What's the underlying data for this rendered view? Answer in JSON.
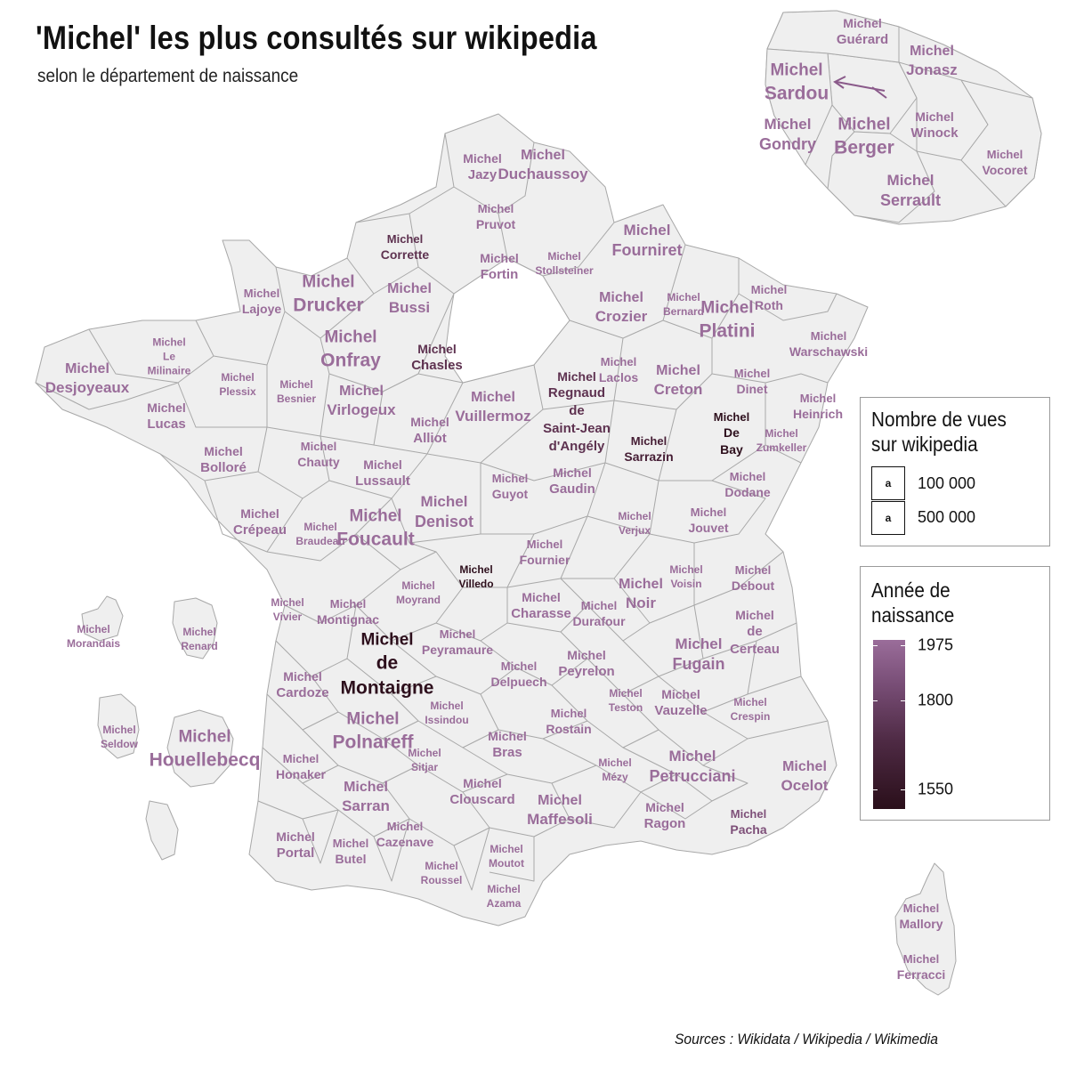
{
  "title": "'Michel' les plus consultés sur wikipedia",
  "subtitle": "selon le département de naissance",
  "sources": "Sources : Wikidata / Wikipedia / Wikimedia",
  "legend_views": {
    "title": "Nombre de vues\nsur wikipedia",
    "key_glyph": "a",
    "items": [
      {
        "value": 100000,
        "label": "100 000"
      },
      {
        "value": 500000,
        "label": "500 000"
      }
    ]
  },
  "legend_year": {
    "title": "Année de\nnaissance",
    "ticks": [
      {
        "year": 1975,
        "label": "1975"
      },
      {
        "year": 1800,
        "label": "1800"
      },
      {
        "year": 1550,
        "label": "1550"
      }
    ],
    "colors": {
      "1975": "#9a6d9a",
      "1800": "#6b3e66",
      "1550": "#2a0f1a"
    }
  },
  "colors": {
    "region_fill": "#efefef",
    "region_stroke": "#a8a8a8",
    "inset_arrow": "#8a5a8a"
  },
  "michels": [
    {
      "name": "Michel\nGuérard",
      "year": 1933,
      "views": 50000
    },
    {
      "name": "Michel\nJonasz",
      "year": 1947,
      "views": 90000
    },
    {
      "name": "Michel\nSardou",
      "year": 1947,
      "views": 420000
    },
    {
      "name": "Michel\nGondry",
      "year": 1963,
      "views": 150000
    },
    {
      "name": "Michel\nBerger",
      "year": 1947,
      "views": 420000
    },
    {
      "name": "Michel\nWinock",
      "year": 1937,
      "views": 45000
    },
    {
      "name": "Michel\nVocoret",
      "year": 1969,
      "views": 25000
    },
    {
      "name": "Michel\nSerrault",
      "year": 1928,
      "views": 200000
    },
    {
      "name": "Michel\nJazy",
      "year": 1936,
      "views": 40000
    },
    {
      "name": "Michel\nDuchaussoy",
      "year": 1938,
      "views": 60000
    },
    {
      "name": "Michel\nPruvot",
      "year": 1938,
      "views": 30000
    },
    {
      "name": "Michel\nCorrette",
      "year": 1707,
      "views": 30000
    },
    {
      "name": "Michel\nFortin",
      "year": 1937,
      "views": 50000
    },
    {
      "name": "Michel\nStollsteiner",
      "year": 1958,
      "views": 12000
    },
    {
      "name": "Michel\nFourniret",
      "year": 1942,
      "views": 150000
    },
    {
      "name": "Michel\nLajoye",
      "year": 1969,
      "views": 25000
    },
    {
      "name": "Michel\nDrucker",
      "year": 1942,
      "views": 300000
    },
    {
      "name": "Michel\nBussi",
      "year": 1965,
      "views": 90000
    },
    {
      "name": "Michel\nCrozier",
      "year": 1922,
      "views": 80000
    },
    {
      "name": "Michel\nBernard",
      "year": 1931,
      "views": 15000
    },
    {
      "name": "Michel\nPlatini",
      "year": 1955,
      "views": 280000
    },
    {
      "name": "Michel\nRoth",
      "year": 1960,
      "views": 35000
    },
    {
      "name": "Michel\nLe\nMilinaire",
      "year": 1960,
      "views": 20000
    },
    {
      "name": "Michel\nOnfray",
      "year": 1959,
      "views": 250000
    },
    {
      "name": "Michel\nChasles",
      "year": 1793,
      "views": 50000
    },
    {
      "name": "Michel\nWarschawski",
      "year": 1949,
      "views": 25000
    },
    {
      "name": "Michel\nDesjoyeaux",
      "year": 1965,
      "views": 80000
    },
    {
      "name": "Michel\nPlessix",
      "year": 1959,
      "views": 20000
    },
    {
      "name": "Michel\nBesnier",
      "year": 1928,
      "views": 20000
    },
    {
      "name": "Michel\nVirlogeux",
      "year": 1946,
      "views": 80000
    },
    {
      "name": "Michel\nVuillermoz",
      "year": 1962,
      "views": 80000
    },
    {
      "name": "Michel\nRegnaud\nde\nSaint-Jean\nd'Angély",
      "year": 1760,
      "views": 40000
    },
    {
      "name": "Michel\nLaclos",
      "year": 1925,
      "views": 35000
    },
    {
      "name": "Michel\nCreton",
      "year": 1942,
      "views": 80000
    },
    {
      "name": "Michel\nDinet",
      "year": 1948,
      "views": 30000
    },
    {
      "name": "Michel\nHeinrich",
      "year": 1947,
      "views": 25000
    },
    {
      "name": "Michel\nLucas",
      "year": 1925,
      "views": 45000
    },
    {
      "name": "Michel\nAlliot",
      "year": 1944,
      "views": 40000
    },
    {
      "name": "Michel\nDe\nBay",
      "year": 1513,
      "views": 25000
    },
    {
      "name": "Michel\nZumkeller",
      "year": 1966,
      "views": 15000
    },
    {
      "name": "Michel\nBolloré",
      "year": 1922,
      "views": 55000
    },
    {
      "name": "Michel\nChauty",
      "year": 1924,
      "views": 25000
    },
    {
      "name": "Michel\nLussault",
      "year": 1958,
      "views": 45000
    },
    {
      "name": "Michel\nGuyot",
      "year": 1947,
      "views": 35000
    },
    {
      "name": "Michel\nSarrazin",
      "year": 1659,
      "views": 25000
    },
    {
      "name": "Michel\nGaudin",
      "year": 1948,
      "views": 45000
    },
    {
      "name": "Michel\nDodane",
      "year": 1910,
      "views": 30000
    },
    {
      "name": "Michel\nDenisot",
      "year": 1945,
      "views": 110000
    },
    {
      "name": "Michel\nCrépeau",
      "year": 1930,
      "views": 45000
    },
    {
      "name": "Michel\nBraudeau",
      "year": 1946,
      "views": 20000
    },
    {
      "name": "Michel\nFoucault",
      "year": 1926,
      "views": 420000
    },
    {
      "name": "Michel\nVerjux",
      "year": 1956,
      "views": 20000
    },
    {
      "name": "Michel\nJouvet",
      "year": 1925,
      "views": 35000
    },
    {
      "name": "Michel\nFournier",
      "year": 1944,
      "views": 35000
    },
    {
      "name": "Michel\nVilledo",
      "year": 1598,
      "views": 20000
    },
    {
      "name": "Michel\nVoisin",
      "year": 1944,
      "views": 20000
    },
    {
      "name": "Michel\nDebout",
      "year": 1944,
      "views": 25000
    },
    {
      "name": "Michel\nVivier",
      "year": 1944,
      "views": 15000
    },
    {
      "name": "Michel\nMontignac",
      "year": 1944,
      "views": 35000
    },
    {
      "name": "Michel\nMoyrand",
      "year": 1944,
      "views": 20000
    },
    {
      "name": "Michel\nCharasse",
      "year": 1941,
      "views": 50000
    },
    {
      "name": "Michel\nNoir",
      "year": 1944,
      "views": 60000
    },
    {
      "name": "Michel\nDurafour",
      "year": 1920,
      "views": 30000
    },
    {
      "name": "Michel\nde\nCerteau",
      "year": 1925,
      "views": 55000
    },
    {
      "name": "Michel\nMorandais",
      "year": 1979,
      "views": 15000
    },
    {
      "name": "Michel\nRenard",
      "year": 1961,
      "views": 20000
    },
    {
      "name": "Michel\nde\nMontaigne",
      "year": 1533,
      "views": 480000
    },
    {
      "name": "Michel\nPeyramaure",
      "year": 1922,
      "views": 35000
    },
    {
      "name": "Michel\nPeyrelon",
      "year": 1936,
      "views": 40000
    },
    {
      "name": "Michel\nFugain",
      "year": 1942,
      "views": 120000
    },
    {
      "name": "Michel\nCardoze",
      "year": 1965,
      "views": 45000
    },
    {
      "name": "Michel\nDelpuech",
      "year": 1953,
      "views": 35000
    },
    {
      "name": "Michel\nTeston",
      "year": 1949,
      "views": 15000
    },
    {
      "name": "Michel\nVauzelle",
      "year": 1944,
      "views": 55000
    },
    {
      "name": "Michel\nCrespin",
      "year": 1946,
      "views": 15000
    },
    {
      "name": "Michel\nSeldow",
      "year": 1930,
      "views": 15000
    },
    {
      "name": "Michel\nPolnareff",
      "year": 1944,
      "views": 280000
    },
    {
      "name": "Michel\nIssindou",
      "year": 1952,
      "views": 20000
    },
    {
      "name": "Michel\nRostain",
      "year": 1942,
      "views": 25000
    },
    {
      "name": "Michel\nHouellebecq",
      "year": 1956,
      "views": 300000
    },
    {
      "name": "Michel\nBras",
      "year": 1946,
      "views": 45000
    },
    {
      "name": "Michel\nHonaker",
      "year": 1955,
      "views": 25000
    },
    {
      "name": "Michel\nSitjar",
      "year": 1942,
      "views": 15000
    },
    {
      "name": "Michel\nMézy",
      "year": 1948,
      "views": 20000
    },
    {
      "name": "Michel\nPetrucciani",
      "year": 1962,
      "views": 120000
    },
    {
      "name": "Michel\nOcelot",
      "year": 1943,
      "views": 60000
    },
    {
      "name": "Michel\nSarran",
      "year": 1953,
      "views": 60000
    },
    {
      "name": "Michel\nClouscard",
      "year": 1928,
      "views": 45000
    },
    {
      "name": "Michel\nMaffesoli",
      "year": 1944,
      "views": 60000
    },
    {
      "name": "Michel\nRagon",
      "year": 1924,
      "views": 40000
    },
    {
      "name": "Michel\nPacha",
      "year": 1867,
      "views": 25000
    },
    {
      "name": "Michel\nPortal",
      "year": 1935,
      "views": 50000
    },
    {
      "name": "Michel\nButel",
      "year": 1940,
      "views": 25000
    },
    {
      "name": "Michel\nCazenave",
      "year": 1938,
      "views": 25000
    },
    {
      "name": "Michel\nMoutot",
      "year": 1912,
      "views": 15000
    },
    {
      "name": "Michel\nRoussel",
      "year": 1931,
      "views": 20000
    },
    {
      "name": "Michel\nAzama",
      "year": 1923,
      "views": 20000
    },
    {
      "name": "Michel\nMallory",
      "year": 1936,
      "views": 30000
    },
    {
      "name": "Michel\nFerracci",
      "year": 1946,
      "views": 25000
    }
  ]
}
